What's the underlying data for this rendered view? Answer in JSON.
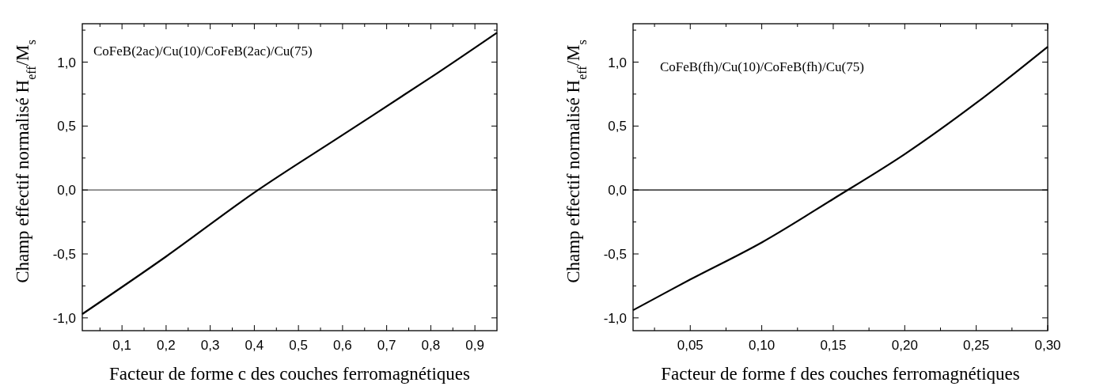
{
  "chart_data": [
    {
      "type": "line",
      "xlabel": "Facteur de forme c des couches ferromagnétiques",
      "ylabel": "Champ effectif normalisé H$_{eff}$/M$_{s}$",
      "annotations": [
        "CoFeB(2ac)/Cu(10)/CoFeB(2ac)/Cu(75)"
      ],
      "series": [
        {
          "color": "#000000",
          "x": [
            0.01,
            0.2,
            0.4,
            0.6,
            0.8,
            0.95
          ],
          "values": [
            -0.97,
            -0.52,
            -0.02,
            0.43,
            0.88,
            1.23
          ]
        }
      ],
      "xlim": [
        0.01,
        0.95
      ],
      "ylim": [
        -1.1,
        1.3
      ],
      "xticks": [
        {
          "value": 0.05,
          "label": null
        },
        {
          "value": 0.1,
          "label": "0,1"
        },
        {
          "value": 0.15,
          "label": null
        },
        {
          "value": 0.2,
          "label": "0,2"
        },
        {
          "value": 0.25,
          "label": null
        },
        {
          "value": 0.3,
          "label": "0,3"
        },
        {
          "value": 0.35,
          "label": null
        },
        {
          "value": 0.4,
          "label": "0,4"
        },
        {
          "value": 0.45,
          "label": null
        },
        {
          "value": 0.5,
          "label": "0,5"
        },
        {
          "value": 0.55,
          "label": null
        },
        {
          "value": 0.6,
          "label": "0,6"
        },
        {
          "value": 0.65,
          "label": null
        },
        {
          "value": 0.7,
          "label": "0,7"
        },
        {
          "value": 0.75,
          "label": null
        },
        {
          "value": 0.8,
          "label": "0,8"
        },
        {
          "value": 0.85,
          "label": null
        },
        {
          "value": 0.9,
          "label": "0,9"
        }
      ],
      "yticks": [
        {
          "value": -1,
          "label": "-1,0"
        },
        {
          "value": -0.75,
          "label": null
        },
        {
          "value": -0.5,
          "label": "-0,5"
        },
        {
          "value": -0.25,
          "label": null
        },
        {
          "value": 0,
          "label": "0,0"
        },
        {
          "value": 0.25,
          "label": null
        },
        {
          "value": 0.5,
          "label": "0,5"
        },
        {
          "value": 0.75,
          "label": null
        },
        {
          "value": 1,
          "label": "1,0"
        },
        {
          "value": 1.25,
          "label": null
        }
      ],
      "ref_lines": [
        {
          "axis": "y",
          "value": 0,
          "color": "#555555"
        }
      ],
      "grid": false,
      "line_style": "solid"
    },
    {
      "type": "line",
      "xlabel": "Facteur de forme f des couches ferromagnétiques",
      "ylabel": "Champ effectif normalisé H$_{eff}$/M$_{s}$",
      "annotations": [
        "CoFeB(fh)/Cu(10)/CoFeB(fh)/Cu(75)"
      ],
      "series": [
        {
          "color": "#000000",
          "x": [
            0.01,
            0.05,
            0.1,
            0.15,
            0.2,
            0.25,
            0.3
          ],
          "values": [
            -0.94,
            -0.7,
            -0.41,
            -0.07,
            0.28,
            0.68,
            1.12
          ]
        }
      ],
      "xlim": [
        0.01,
        0.3
      ],
      "ylim": [
        -1.1,
        1.3
      ],
      "xticks": [
        {
          "value": 0.025,
          "label": null
        },
        {
          "value": 0.05,
          "label": "0,05"
        },
        {
          "value": 0.075,
          "label": null
        },
        {
          "value": 0.1,
          "label": "0,10"
        },
        {
          "value": 0.125,
          "label": null
        },
        {
          "value": 0.15,
          "label": "0,15"
        },
        {
          "value": 0.175,
          "label": null
        },
        {
          "value": 0.2,
          "label": "0,20"
        },
        {
          "value": 0.225,
          "label": null
        },
        {
          "value": 0.25,
          "label": "0,25"
        },
        {
          "value": 0.275,
          "label": null
        },
        {
          "value": 0.3,
          "label": "0,30"
        }
      ],
      "yticks": [
        {
          "value": -1,
          "label": "-1,0"
        },
        {
          "value": -0.75,
          "label": null
        },
        {
          "value": -0.5,
          "label": "-0,5"
        },
        {
          "value": -0.25,
          "label": null
        },
        {
          "value": 0,
          "label": "0,0"
        },
        {
          "value": 0.25,
          "label": null
        },
        {
          "value": 0.5,
          "label": "0,5"
        },
        {
          "value": 0.75,
          "label": null
        },
        {
          "value": 1,
          "label": "1,0"
        },
        {
          "value": 1.25,
          "label": null
        }
      ],
      "ref_lines": [
        {
          "axis": "y",
          "value": 0,
          "color": "#000000"
        }
      ],
      "grid": false,
      "line_style": "solid"
    }
  ]
}
